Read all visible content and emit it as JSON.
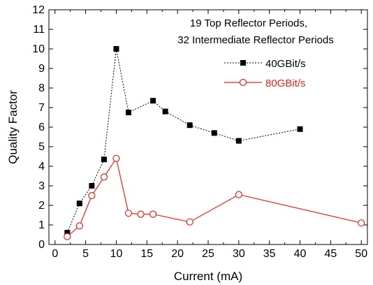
{
  "chart_data": {
    "type": "line",
    "title": "",
    "xlabel": "Current (mA)",
    "ylabel": "Quality Factor",
    "xlim": [
      -1,
      51
    ],
    "ylim": [
      0,
      12
    ],
    "xticks": [
      0,
      5,
      10,
      15,
      20,
      25,
      30,
      35,
      40,
      45,
      50
    ],
    "yticks": [
      0,
      1,
      2,
      3,
      4,
      5,
      6,
      7,
      8,
      9,
      10,
      11,
      12
    ],
    "annotation": [
      "19 Top Reflector Periods,",
      "32 Intermediate Reflector Periods"
    ],
    "legend_position": "top-right",
    "grid": false,
    "series": [
      {
        "name": "40GBit/s",
        "color": "#000000",
        "marker": "filled-square",
        "line": "dashed",
        "x": [
          2,
          4,
          6,
          8,
          10,
          12,
          16,
          18,
          22,
          26,
          30,
          40
        ],
        "y": [
          0.6,
          2.1,
          3.0,
          4.35,
          10.0,
          6.75,
          7.35,
          6.8,
          6.1,
          5.7,
          5.3,
          5.9
        ]
      },
      {
        "name": "80GBit/s",
        "color": "#e8221b",
        "marker": "open-circle",
        "line": "solid",
        "x": [
          2,
          4,
          6,
          8,
          10,
          12,
          14,
          16,
          22,
          30,
          50
        ],
        "y": [
          0.4,
          0.95,
          2.5,
          3.45,
          4.4,
          1.6,
          1.55,
          1.55,
          1.15,
          2.55,
          1.1
        ]
      }
    ]
  }
}
